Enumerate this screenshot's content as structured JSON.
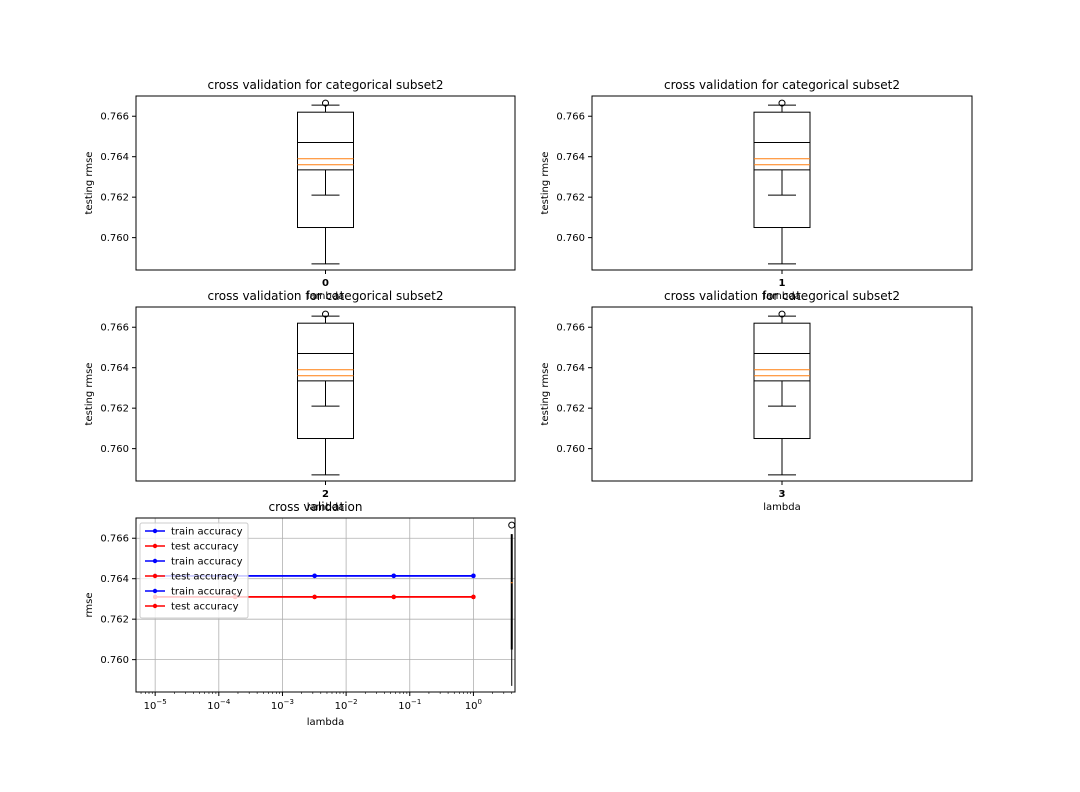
{
  "chart_data": [
    {
      "type": "box",
      "title": "cross validation for categorical subset2",
      "ylabel": "testing rmse",
      "xlabel": "lambda",
      "xtick": "0",
      "ylim": [
        0.7584,
        0.767
      ],
      "yticks": [
        "0.760",
        "0.762",
        "0.764",
        "0.766"
      ],
      "box": {
        "whisker_low": 0.7587,
        "q1": 0.7605,
        "median_lines": [
          0.76335,
          0.7636,
          0.7639,
          0.7647
        ],
        "whisker_mid": 0.7621,
        "q3": 0.7662,
        "whisker_high": 0.76655,
        "outlier": 0.76665
      }
    },
    {
      "type": "box",
      "title": "cross validation for categorical subset2",
      "ylabel": "testing rmse",
      "xlabel": "lambda",
      "xtick": "1",
      "ylim": [
        0.7584,
        0.767
      ],
      "yticks": [
        "0.760",
        "0.762",
        "0.764",
        "0.766"
      ],
      "box": {
        "whisker_low": 0.7587,
        "q1": 0.7605,
        "median_lines": [
          0.76335,
          0.7636,
          0.7639,
          0.7647
        ],
        "whisker_mid": 0.7621,
        "q3": 0.7662,
        "whisker_high": 0.76655,
        "outlier": 0.76665
      }
    },
    {
      "type": "box",
      "title": "cross validation for categorical subset2",
      "ylabel": "testing rmse",
      "xlabel": "lambda",
      "xtick": "2",
      "ylim": [
        0.7584,
        0.767
      ],
      "yticks": [
        "0.760",
        "0.762",
        "0.764",
        "0.766"
      ],
      "box": {
        "whisker_low": 0.7587,
        "q1": 0.7605,
        "median_lines": [
          0.76335,
          0.7636,
          0.7639,
          0.7647
        ],
        "whisker_mid": 0.7621,
        "q3": 0.7662,
        "whisker_high": 0.76655,
        "outlier": 0.76665
      }
    },
    {
      "type": "box",
      "title": "cross validation for categorical subset2",
      "ylabel": "testing rmse",
      "xlabel": "lambda",
      "xtick": "3",
      "ylim": [
        0.7584,
        0.767
      ],
      "yticks": [
        "0.760",
        "0.762",
        "0.764",
        "0.766"
      ],
      "box": {
        "whisker_low": 0.7587,
        "q1": 0.7605,
        "median_lines": [
          0.76335,
          0.7636,
          0.7639,
          0.7647
        ],
        "whisker_mid": 0.7621,
        "q3": 0.7662,
        "whisker_high": 0.76655,
        "outlier": 0.76665
      }
    },
    {
      "type": "line",
      "title": "cross validation",
      "xlabel": "lambda",
      "ylabel": "rmse",
      "xscale": "log",
      "xlim": [
        5e-06,
        4.5
      ],
      "ylim": [
        0.7584,
        0.767
      ],
      "xticks": [
        "10^-5",
        "10^-4",
        "10^-3",
        "10^-2",
        "10^-1",
        "10^0"
      ],
      "yticks": [
        "0.760",
        "0.762",
        "0.764",
        "0.766"
      ],
      "grid": true,
      "legend_position": "top-left",
      "x": [
        1e-05,
        0.00018,
        0.0032,
        0.056,
        1.0
      ],
      "series": [
        {
          "name": "train accuracy",
          "color": "#0000ff",
          "values": [
            0.76414,
            0.76414,
            0.76414,
            0.76414,
            0.76414
          ]
        },
        {
          "name": "test accuracy",
          "color": "#ff0000",
          "values": [
            0.7631,
            0.7631,
            0.7631,
            0.7631,
            0.7631
          ]
        },
        {
          "name": "train accuracy",
          "color": "#0000ff",
          "values": [
            0.76414,
            0.76414,
            0.76414,
            0.76414,
            0.76414
          ]
        },
        {
          "name": "test accuracy",
          "color": "#ff0000",
          "values": [
            0.7631,
            0.7631,
            0.7631,
            0.7631,
            0.7631
          ]
        },
        {
          "name": "train accuracy",
          "color": "#0000ff",
          "values": [
            0.76414,
            0.76414,
            0.76414,
            0.76414,
            0.76414
          ]
        },
        {
          "name": "test accuracy",
          "color": "#ff0000",
          "values": [
            0.7631,
            0.7631,
            0.7631,
            0.7631,
            0.7631
          ]
        }
      ],
      "edge_box": {
        "x": 4.0,
        "whisker_low": 0.7587,
        "q1": 0.7605,
        "median": 0.7638,
        "q3": 0.7662,
        "outlier": 0.76665
      }
    }
  ],
  "colors": {
    "median": "#ff7f0e",
    "grid": "#b0b0b0",
    "axis": "#000000"
  }
}
